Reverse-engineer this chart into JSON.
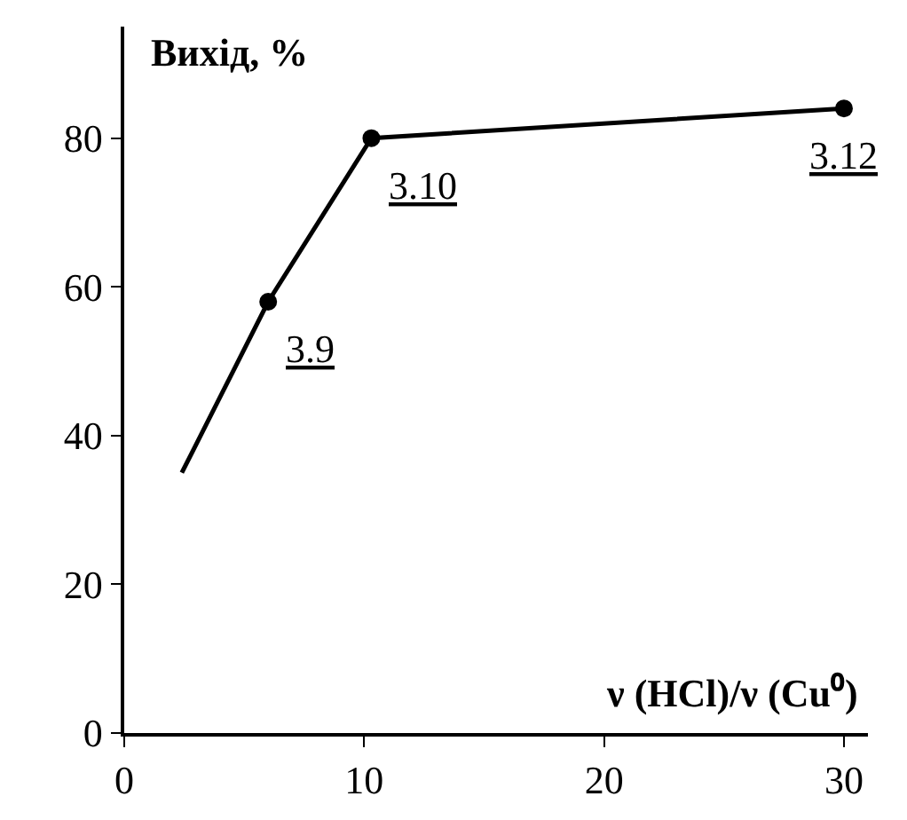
{
  "chart_data": {
    "type": "line",
    "xlabel": "ν (HCl)/ν (Cu⁰)",
    "ylabel": "Вихід, %",
    "series": [
      {
        "color": "#000000",
        "marker": "none",
        "x": [
          2.4,
          6,
          10.3,
          30
        ],
        "values": [
          35,
          58,
          80,
          84
        ]
      },
      {
        "type": "scatter",
        "color": "#000000",
        "marker": "circle",
        "x": [
          6,
          10.3,
          30
        ],
        "values": [
          58,
          80,
          84
        ]
      }
    ],
    "xlim": [
      0,
      31
    ],
    "xticks": [
      0,
      10,
      20,
      30
    ],
    "ylim": [
      0,
      95
    ],
    "yticks": [
      0,
      20,
      40,
      60,
      80
    ],
    "grid": false,
    "annotations": [
      {
        "text": "3.9",
        "x": 6,
        "y": 58
      },
      {
        "text": "3.10",
        "x": 10.3,
        "y": 80
      },
      {
        "text": "3.12",
        "x": 30,
        "y": 84
      }
    ]
  }
}
